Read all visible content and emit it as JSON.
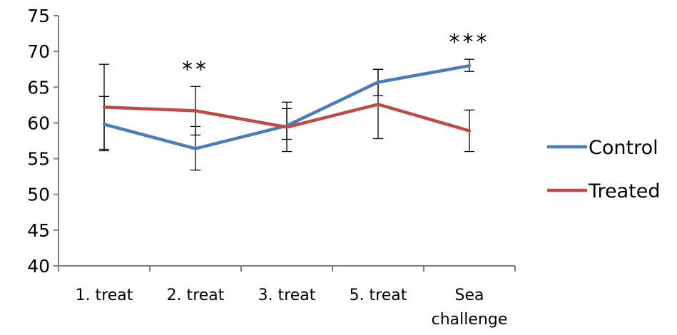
{
  "chart_data": {
    "type": "line",
    "title": "",
    "xlabel": "",
    "ylabel": "",
    "categories": [
      [
        "1. treat"
      ],
      [
        "2. treat"
      ],
      [
        "3. treat"
      ],
      [
        "5. treat"
      ],
      [
        "Sea",
        "challenge"
      ]
    ],
    "ylim": [
      40,
      75
    ],
    "yticks": [
      40,
      45,
      50,
      55,
      60,
      65,
      70,
      75
    ],
    "grid": false,
    "legend_position": "right",
    "series": [
      {
        "name": "Control",
        "color": "#4a7ebb",
        "values": [
          59.8,
          56.4,
          59.6,
          65.7,
          68.0
        ],
        "error_low": [
          56.3,
          53.4,
          56.0,
          63.8,
          67.2
        ],
        "error_high": [
          63.7,
          59.5,
          62.9,
          67.5,
          68.9
        ]
      },
      {
        "name": "Treated",
        "color": "#be4b48",
        "values": [
          62.2,
          61.7,
          59.4,
          62.6,
          58.9
        ],
        "error_low": [
          56.1,
          58.3,
          57.7,
          57.8,
          56.0
        ],
        "error_high": [
          68.2,
          65.1,
          62.0,
          67.5,
          61.8
        ]
      }
    ],
    "annotations": [
      {
        "text": "**",
        "category_index": 1
      },
      {
        "text": "***",
        "category_index": 4
      }
    ]
  }
}
